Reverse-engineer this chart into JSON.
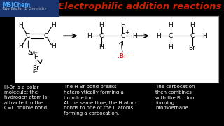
{
  "bg_color": "#000000",
  "title": "Electrophilic addition reactions",
  "title_color": "#cc2200",
  "title_fontsize": 9.5,
  "header_bg": "#1a3570",
  "header_text1": "MSJChem",
  "header_text2": "Tutorials for IB Chemistry",
  "header_color1": "#44aaff",
  "header_color2": "#cccccc",
  "box_bg": "#ffffff",
  "box_edge": "#999999",
  "text_color": "#ffffff",
  "text_descriptions": [
    "H-Br is a polar\nmolecule; the\nhydrogen atom is\nattracted to the\nC=C double bond.",
    "The H-Br bond breaks\nheterolytically forming a\nbromide ion.\nAt the same time, the H atom\nbonds to one of the C atoms\nforming a carbocation.",
    "The carbocation\nthen combines\nwith the Br⁻ ion\nforming\nbromoethane."
  ],
  "desc_fontsize": 5.0
}
